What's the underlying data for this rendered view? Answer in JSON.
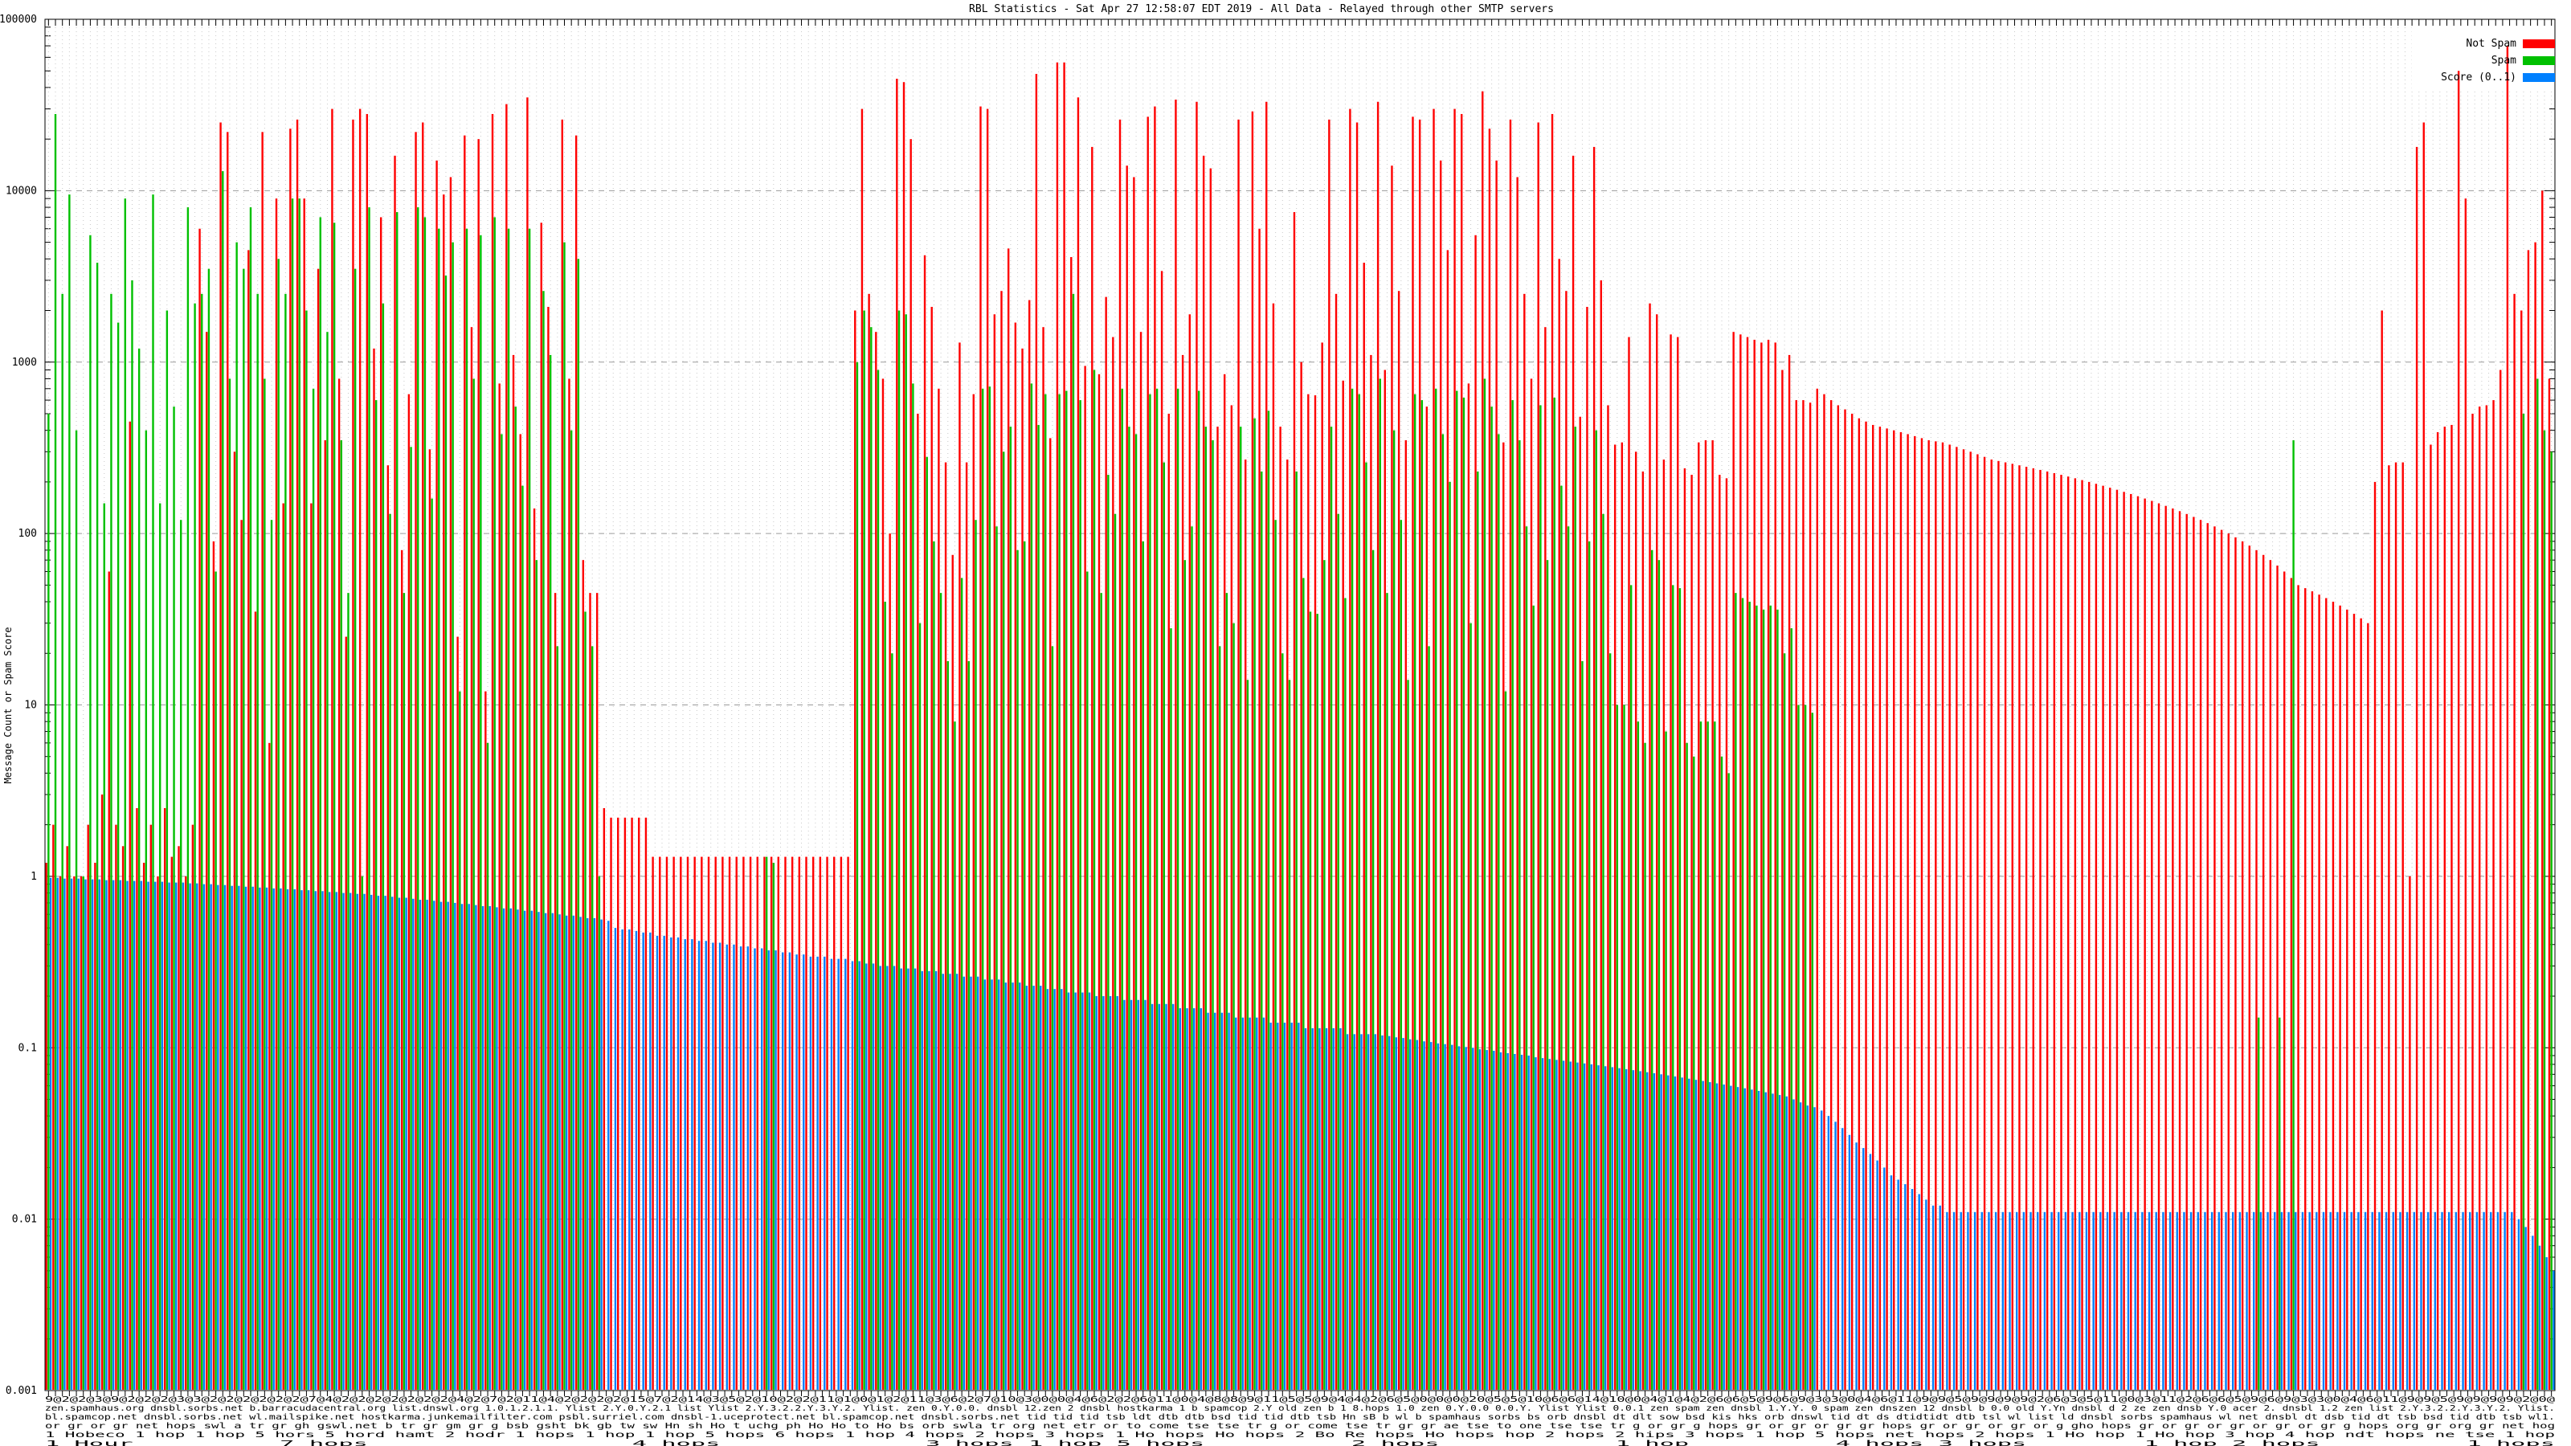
{
  "title": "RBL Statistics - Sat Apr 27 12:58:07 EDT 2019 - All Data - Relayed through other SMTP servers",
  "y_axis": {
    "label": "Message Count or Spam Score",
    "ticks": [
      "100000",
      "10000",
      "1000",
      "100",
      "10",
      "1",
      "0.1",
      "0.01",
      "0.001"
    ],
    "min": 0.001,
    "max": 100000,
    "scale": "log"
  },
  "legend": [
    {
      "label": "Not Spam",
      "color": "#FF0000"
    },
    {
      "label": "Spam",
      "color": "#00C000"
    },
    {
      "label": "Score (0..1)",
      "color": "#0080FF"
    }
  ],
  "x_axis": {
    "rows": [
      "9@2@2@3@9@2@2@2@3@3@2@2@2@2@2@2@7@4@2@2@2@2@2@2@2@4@2@7@2@11@4@2@2@2@2@15@7@2@14@3@5@2@10@2@2@11@1@0@1@2@11@3@6@2@7@10@3@0@0@4@6@2@2@6@11@0@4@8@8@9@11@5@5@9@4@4@2@6@5@0@0@0@20@5@5@10@6@6@14@10@0@4@1@4@2@6@6@5@9@6@9@3@3@0@4@6@11@9@9@5@9@9@9@9@2@6@3@5@11@0@3@11@2@6@6@5@9@6@9@3@3@0@4@6@11@9@9@5@9@9@9@9@2@0@",
      "zen.spamhaus.org dnsbl.sorbs.net b.barracudacentral.org list.dnswl.org 1.0.1.2.1.1. Ylist 2.Y.0.Y.2.1 list Ylist 2.Y.3.2.2.Y.3.Y.2. Ylist. zen 0.Y.0.0. dnsbl 12.zen 2 dnsbl hostkarma 1 b spamcop 2.Y old zen b 1 8.hops 1.0 zen 0.Y.0.0 0.0.Y. Ylist Ylist 0.0.1 zen spam zen dnsbl 1.Y.Y. 0 spam zen dnszen 12 dnsbl b 0.0 old Y.Yn dnsbl d 2 ze zen dnsb Y.0 acer 2. dnsbl 1.2 zen list 2.Y.3.2.2.Y.3.Y.2. Ylist.",
      "bl.spamcop.net dnsbl.sorbs.net wl.mailspike.net hostkarma.junkemailfilter.com psbl.surriel.com dnsbl-1.uceprotect.net bl.spamcop.net dnsbl.sorbs.net tid tid tid tsb ldt dtb dtb bsd tid tid dtb tsb Hn sB b wl b spamhaus sorbs bs orb dnsbl dt dlt sow bsd kis hks orb dnswl tid dt ds dtidtidt dtb tsl wl list ld dnsbl sorbs spamhaus wl net dnsbl dt dsb tid dt tsb bsd tid dtb tsb wl1.",
      "or gr or gr net hops swl a tr gr gh gswl.net b tr gr gm gr g bsb gsht bk gb tw sw Hn sh Ho t uchg ph Ho Ho to Ho bs orb swla tr org net etr or to come tse tse tr g or come tse tr gr gr ae tse to one tse tse tr g or gr g hops gr or gr or gr gr hops gr or gr or gr or g gho hops gr or gr or gr or gr or gr g hops org gr org gr net hog",
      "1 Hobeco 1 hop 1 hop 5 hors 5 hord hamt 2 hodr 1 hops 1 hop 1 hop 5 hops 6 hops 1 hop 4 hops 2 hops 3 hops 1 Ho hops Ho hops 2 Bo Re hops Ho hops hop 2 hops 2 hips 3 hops 1 hop 5 hops net hops 2 hops 1 Ho hop 1 Ho hop 3 hop 4 hop ndt hops ne tse 1 hop",
      "1 Hour          7 hops                  4 hops              3 hops 1 hop 5 hops          2 hops            1 hop          4 hops 3 hops        1 hop 2 hops          1 hops"
    ]
  },
  "chart_data": {
    "type": "bar",
    "subtype": "impulses",
    "scale": "log",
    "ylim": [
      0.001,
      100000
    ],
    "grid": true,
    "legend_position": "top-right",
    "categories_count": 360,
    "series": [
      {
        "name": "Not Spam",
        "color": "#FF0000",
        "values": [
          1.2,
          2,
          1,
          1.5,
          1,
          1,
          2,
          1.2,
          3,
          60,
          2,
          1.5,
          450,
          2.5,
          1.2,
          2,
          1,
          2.5,
          1.3,
          1.5,
          1,
          2,
          6000,
          1500,
          90,
          25000,
          22000,
          300,
          120,
          4500,
          35,
          22000,
          6,
          9000,
          150,
          23000,
          26000,
          9000,
          150,
          3500,
          350,
          30000,
          800,
          25,
          26000,
          30000,
          28000,
          1200,
          7000,
          250,
          16000,
          80,
          650,
          22000,
          25000,
          310,
          15000,
          9500,
          12000,
          25,
          21000,
          1600,
          20000,
          12,
          28000,
          750,
          32000,
          1100,
          380,
          35000,
          140,
          6500,
          2100,
          45,
          26000,
          800,
          21000,
          70,
          45,
          45,
          2.5,
          2.2,
          2.2,
          2.2,
          2.2,
          2.2,
          2.2,
          1.3,
          1.3,
          1.3,
          1.3,
          1.3,
          1.3,
          1.3,
          1.3,
          1.3,
          1.3,
          1.3,
          1.3,
          1.3,
          1.3,
          1.3,
          1.3,
          1.3,
          1.3,
          1.3,
          1.3,
          1.3,
          1.3,
          1.3,
          1.3,
          1.3,
          1.3,
          1.3,
          1.3,
          1.3,
          2000,
          30000,
          2500,
          1500,
          800,
          100,
          45000,
          43000,
          20000,
          500,
          4200,
          2100,
          700,
          260,
          75,
          1300,
          260,
          650,
          31000,
          30000,
          1900,
          2600,
          4600,
          1700,
          1200,
          2300,
          48000,
          1600,
          360,
          56000,
          56000,
          4100,
          35000,
          950,
          18000,
          850,
          2400,
          1400,
          26000,
          14000,
          12000,
          1500,
          27000,
          31000,
          3400,
          500,
          34000,
          1100,
          1900,
          33000,
          16000,
          13500,
          420,
          850,
          560,
          26000,
          270,
          29000,
          6000,
          33000,
          2200,
          420,
          270,
          7500,
          1000,
          650,
          640,
          1300,
          26000,
          2500,
          780,
          30000,
          25000,
          3800,
          1100,
          33000,
          900,
          14000,
          2600,
          350,
          27000,
          26000,
          550,
          30000,
          15000,
          4500,
          30000,
          28000,
          750,
          5500,
          38000,
          23000,
          15000,
          340,
          26000,
          12000,
          2500,
          800,
          25000,
          1600,
          28000,
          4000,
          2600,
          16000,
          480,
          2100,
          18000,
          3000,
          560,
          330,
          340,
          1400,
          300,
          230,
          2200,
          1900,
          270,
          1450,
          1400,
          240,
          220,
          340,
          350,
          350,
          220,
          210,
          1500,
          1450,
          1400,
          1350,
          1300,
          1350,
          1300,
          900,
          1100,
          600,
          600,
          580,
          700,
          650,
          600,
          560,
          530,
          500,
          470,
          450,
          430,
          420,
          410,
          400,
          390,
          380,
          370,
          360,
          350,
          345,
          340,
          330,
          320,
          310,
          300,
          290,
          280,
          270,
          265,
          260,
          255,
          250,
          245,
          240,
          235,
          230,
          225,
          220,
          215,
          210,
          205,
          200,
          195,
          190,
          185,
          180,
          175,
          170,
          165,
          160,
          155,
          150,
          145,
          140,
          135,
          130,
          125,
          120,
          115,
          110,
          105,
          100,
          95,
          90,
          85,
          80,
          75,
          70,
          65,
          60,
          55,
          50,
          48,
          46,
          44,
          42,
          40,
          38,
          36,
          34,
          32,
          30,
          200,
          2000,
          250,
          260,
          260,
          1,
          18000,
          25000,
          330,
          390,
          420,
          430,
          50000,
          9000,
          500,
          550,
          560,
          600,
          900,
          70000,
          2500,
          2000,
          4500,
          5000,
          10000,
          800
        ]
      },
      {
        "name": "Spam",
        "color": "#00C000",
        "values": [
          500,
          28000,
          2500,
          9500,
          400,
          1,
          5500,
          3800,
          150,
          2500,
          1700,
          9000,
          3000,
          1200,
          400,
          9500,
          150,
          2000,
          550,
          120,
          8000,
          2200,
          2500,
          3500,
          60,
          13000,
          800,
          5000,
          3500,
          8000,
          2500,
          800,
          120,
          4000,
          2500,
          9000,
          9000,
          2000,
          700,
          7000,
          1500,
          6500,
          350,
          45,
          3500,
          1,
          8000,
          600,
          2200,
          130,
          7500,
          45,
          320,
          8000,
          7000,
          160,
          6000,
          3200,
          5000,
          12,
          6000,
          800,
          5500,
          6,
          7000,
          380,
          6000,
          550,
          190,
          6000,
          70,
          2600,
          1100,
          22,
          5000,
          400,
          4000,
          35,
          22,
          1,
          0,
          0,
          0,
          0,
          0,
          0,
          0,
          0,
          0,
          0,
          0,
          0,
          0,
          0,
          0,
          0,
          0,
          0,
          0,
          0,
          0,
          0,
          0,
          1.3,
          1.2,
          0,
          0,
          0,
          0,
          0,
          0,
          0,
          0,
          0,
          0,
          0,
          1000,
          2000,
          1600,
          900,
          40,
          20,
          2000,
          1900,
          750,
          30,
          280,
          90,
          45,
          18,
          8,
          55,
          18,
          120,
          700,
          720,
          110,
          300,
          420,
          80,
          90,
          750,
          430,
          650,
          22,
          650,
          680,
          2500,
          600,
          60,
          900,
          45,
          220,
          130,
          700,
          420,
          380,
          90,
          650,
          700,
          260,
          28,
          700,
          70,
          110,
          680,
          420,
          350,
          22,
          45,
          30,
          420,
          14,
          470,
          230,
          520,
          120,
          20,
          14,
          230,
          55,
          35,
          34,
          70,
          420,
          130,
          42,
          700,
          650,
          260,
          80,
          800,
          45,
          400,
          120,
          14,
          650,
          600,
          22,
          700,
          380,
          200,
          680,
          620,
          30,
          230,
          800,
          550,
          380,
          12,
          600,
          350,
          110,
          38,
          560,
          70,
          620,
          190,
          110,
          420,
          18,
          90,
          400,
          130,
          20,
          10,
          10,
          50,
          8,
          6,
          80,
          70,
          7,
          50,
          48,
          6,
          5,
          8,
          8,
          8,
          5,
          4,
          45,
          42,
          40,
          38,
          36,
          38,
          36,
          20,
          28,
          10,
          10,
          9,
          0,
          0,
          0,
          0,
          0,
          0,
          0,
          0,
          0,
          0,
          0,
          0,
          0,
          0,
          0,
          0,
          0,
          0,
          0,
          0,
          0,
          0,
          0,
          0,
          0,
          0,
          0,
          0,
          0,
          0,
          0,
          0,
          0,
          0,
          0,
          0,
          0,
          0,
          0,
          0,
          0,
          0,
          0,
          0,
          0,
          0,
          0,
          0,
          0,
          0,
          0,
          0,
          0,
          0,
          0,
          0,
          0,
          0,
          0,
          0,
          0,
          0,
          0,
          0.15,
          0,
          0,
          0.15,
          0,
          350,
          0,
          0,
          0,
          0,
          0,
          0,
          0,
          0,
          0,
          0,
          0,
          0,
          0,
          0,
          0,
          0,
          0,
          0,
          0,
          0,
          0,
          0,
          0,
          0,
          0,
          0,
          0,
          0,
          0,
          0,
          0,
          0,
          500,
          0,
          800,
          400,
          300
        ]
      },
      {
        "name": "Score (0..1)",
        "color": "#0080FF",
        "values": [
          0.98,
          0.98,
          0.97,
          0.97,
          0.97,
          0.96,
          0.96,
          0.96,
          0.95,
          0.95,
          0.95,
          0.94,
          0.94,
          0.94,
          0.93,
          0.93,
          0.93,
          0.92,
          0.92,
          0.92,
          0.91,
          0.91,
          0.9,
          0.9,
          0.89,
          0.89,
          0.88,
          0.88,
          0.87,
          0.87,
          0.86,
          0.86,
          0.85,
          0.85,
          0.84,
          0.84,
          0.83,
          0.83,
          0.82,
          0.82,
          0.81,
          0.81,
          0.8,
          0.8,
          0.79,
          0.79,
          0.78,
          0.77,
          0.77,
          0.76,
          0.75,
          0.75,
          0.74,
          0.73,
          0.73,
          0.72,
          0.71,
          0.71,
          0.7,
          0.69,
          0.69,
          0.68,
          0.67,
          0.67,
          0.66,
          0.65,
          0.65,
          0.64,
          0.63,
          0.63,
          0.62,
          0.61,
          0.61,
          0.6,
          0.59,
          0.59,
          0.58,
          0.57,
          0.57,
          0.56,
          0.55,
          0.5,
          0.49,
          0.49,
          0.48,
          0.47,
          0.47,
          0.45,
          0.45,
          0.44,
          0.44,
          0.43,
          0.43,
          0.42,
          0.42,
          0.41,
          0.41,
          0.4,
          0.4,
          0.39,
          0.39,
          0.38,
          0.38,
          0.37,
          0.37,
          0.36,
          0.36,
          0.35,
          0.35,
          0.34,
          0.34,
          0.34,
          0.33,
          0.33,
          0.33,
          0.32,
          0.32,
          0.31,
          0.31,
          0.3,
          0.3,
          0.3,
          0.29,
          0.29,
          0.29,
          0.28,
          0.28,
          0.28,
          0.27,
          0.27,
          0.27,
          0.26,
          0.26,
          0.26,
          0.25,
          0.25,
          0.25,
          0.24,
          0.24,
          0.24,
          0.23,
          0.23,
          0.23,
          0.22,
          0.22,
          0.22,
          0.21,
          0.21,
          0.21,
          0.21,
          0.2,
          0.2,
          0.2,
          0.2,
          0.19,
          0.19,
          0.19,
          0.19,
          0.18,
          0.18,
          0.18,
          0.18,
          0.17,
          0.17,
          0.17,
          0.17,
          0.16,
          0.16,
          0.16,
          0.16,
          0.15,
          0.15,
          0.15,
          0.15,
          0.15,
          0.14,
          0.14,
          0.14,
          0.14,
          0.14,
          0.13,
          0.13,
          0.13,
          0.13,
          0.13,
          0.13,
          0.12,
          0.12,
          0.12,
          0.12,
          0.12,
          0.118,
          0.117,
          0.115,
          0.114,
          0.112,
          0.111,
          0.109,
          0.108,
          0.106,
          0.105,
          0.104,
          0.102,
          0.101,
          0.1,
          0.098,
          0.097,
          0.096,
          0.094,
          0.093,
          0.092,
          0.091,
          0.09,
          0.088,
          0.087,
          0.086,
          0.085,
          0.084,
          0.083,
          0.082,
          0.081,
          0.08,
          0.079,
          0.078,
          0.077,
          0.076,
          0.075,
          0.074,
          0.073,
          0.072,
          0.071,
          0.07,
          0.069,
          0.068,
          0.067,
          0.066,
          0.065,
          0.064,
          0.063,
          0.062,
          0.061,
          0.06,
          0.059,
          0.058,
          0.057,
          0.056,
          0.055,
          0.054,
          0.053,
          0.052,
          0.05,
          0.048,
          0.046,
          0.045,
          0.043,
          0.04,
          0.037,
          0.034,
          0.031,
          0.028,
          0.026,
          0.024,
          0.022,
          0.02,
          0.018,
          0.017,
          0.016,
          0.015,
          0.014,
          0.013,
          0.012,
          0.012,
          0.011,
          0.011,
          0.011,
          0.011,
          0.011,
          0.011,
          0.011,
          0.011,
          0.011,
          0.011,
          0.011,
          0.011,
          0.011,
          0.011,
          0.011,
          0.011,
          0.011,
          0.011,
          0.011,
          0.011,
          0.011,
          0.011,
          0.011,
          0.011,
          0.011,
          0.011,
          0.011,
          0.011,
          0.011,
          0.011,
          0.011,
          0.011,
          0.011,
          0.011,
          0.011,
          0.011,
          0.011,
          0.011,
          0.011,
          0.011,
          0.011,
          0.011,
          0.011,
          0.011,
          0.011,
          0.011,
          0.011,
          0.011,
          0.011,
          0.011,
          0.011,
          0.011,
          0.011,
          0.011,
          0.011,
          0.011,
          0.011,
          0.011,
          0.011,
          0.011,
          0.011,
          0.011,
          0.011,
          0.011,
          0.011,
          0.011,
          0.011,
          0.011,
          0.011,
          0.011,
          0.011,
          0.011,
          0.011,
          0.011,
          0.011,
          0.011,
          0.011,
          0.011,
          0.011,
          0.011,
          0.011,
          0.011,
          0.01,
          0.009,
          0.008,
          0.007,
          0.006,
          0.005
        ]
      }
    ]
  }
}
